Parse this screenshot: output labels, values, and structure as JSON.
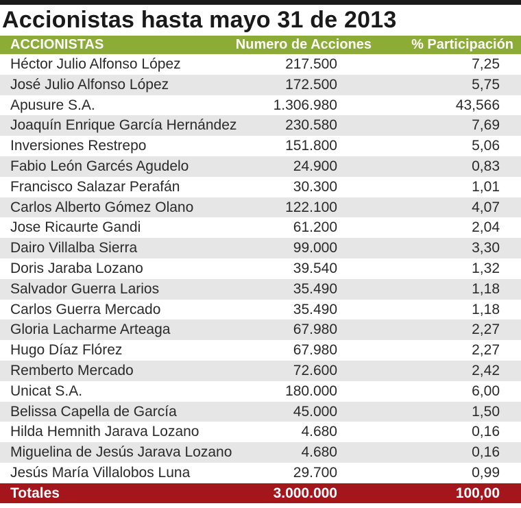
{
  "title": "Accionistas hasta mayo 31 de 2013",
  "colors": {
    "header_bg": "#8dac35",
    "total_bg": "#a5161c",
    "stripe": "#e6e6e6",
    "top_rule": "#1a1a1a"
  },
  "chart_data": {
    "type": "table",
    "title": "Accionistas hasta mayo 31 de 2013",
    "columns": [
      "ACCIONISTAS",
      "Numero de Acciones",
      "% Participación"
    ],
    "rows": [
      {
        "name": "Héctor Julio Alfonso López",
        "shares": "217.500",
        "pct": "7,25"
      },
      {
        "name": "José Julio Alfonso López",
        "shares": "172.500",
        "pct": "5,75"
      },
      {
        "name": "Apusure S.A.",
        "shares": "1.306.980",
        "pct": "43,566"
      },
      {
        "name": "Joaquín Enrique García Hernández",
        "shares": "230.580",
        "pct": "7,69"
      },
      {
        "name": "Inversiones Restrepo",
        "shares": "151.800",
        "pct": "5,06"
      },
      {
        "name": "Fabio León Garcés Agudelo",
        "shares": "24.900",
        "pct": "0,83"
      },
      {
        "name": "Francisco Salazar Perafán",
        "shares": "30.300",
        "pct": "1,01"
      },
      {
        "name": "Carlos Alberto Gómez Olano",
        "shares": "122.100",
        "pct": "4,07"
      },
      {
        "name": "Jose Ricaurte Gandi",
        "shares": "61.200",
        "pct": "2,04"
      },
      {
        "name": "Dairo Villalba Sierra",
        "shares": "99.000",
        "pct": "3,30"
      },
      {
        "name": "Doris Jaraba Lozano",
        "shares": "39.540",
        "pct": "1,32"
      },
      {
        "name": "Salvador Guerra Larios",
        "shares": "35.490",
        "pct": "1,18"
      },
      {
        "name": "Carlos Guerra Mercado",
        "shares": "35.490",
        "pct": "1,18"
      },
      {
        "name": "Gloria Lacharme Arteaga",
        "shares": "67.980",
        "pct": "2,27"
      },
      {
        "name": "Hugo Díaz Flórez",
        "shares": "67.980",
        "pct": "2,27"
      },
      {
        "name": "Remberto Mercado",
        "shares": "72.600",
        "pct": "2,42"
      },
      {
        "name": "Unicat S.A.",
        "shares": "180.000",
        "pct": "6,00"
      },
      {
        "name": "Belissa Capella de García",
        "shares": "45.000",
        "pct": "1,50"
      },
      {
        "name": "Hilda Hemnith Jarava Lozano",
        "shares": "4.680",
        "pct": "0,16"
      },
      {
        "name": "Miguelina de Jesús Jarava Lozano",
        "shares": "4.680",
        "pct": "0,16"
      },
      {
        "name": "Jesús María Villalobos Luna",
        "shares": "29.700",
        "pct": "0,99"
      }
    ],
    "totals": {
      "label": "Totales",
      "shares": "3.000.000",
      "pct": "100,00"
    }
  }
}
